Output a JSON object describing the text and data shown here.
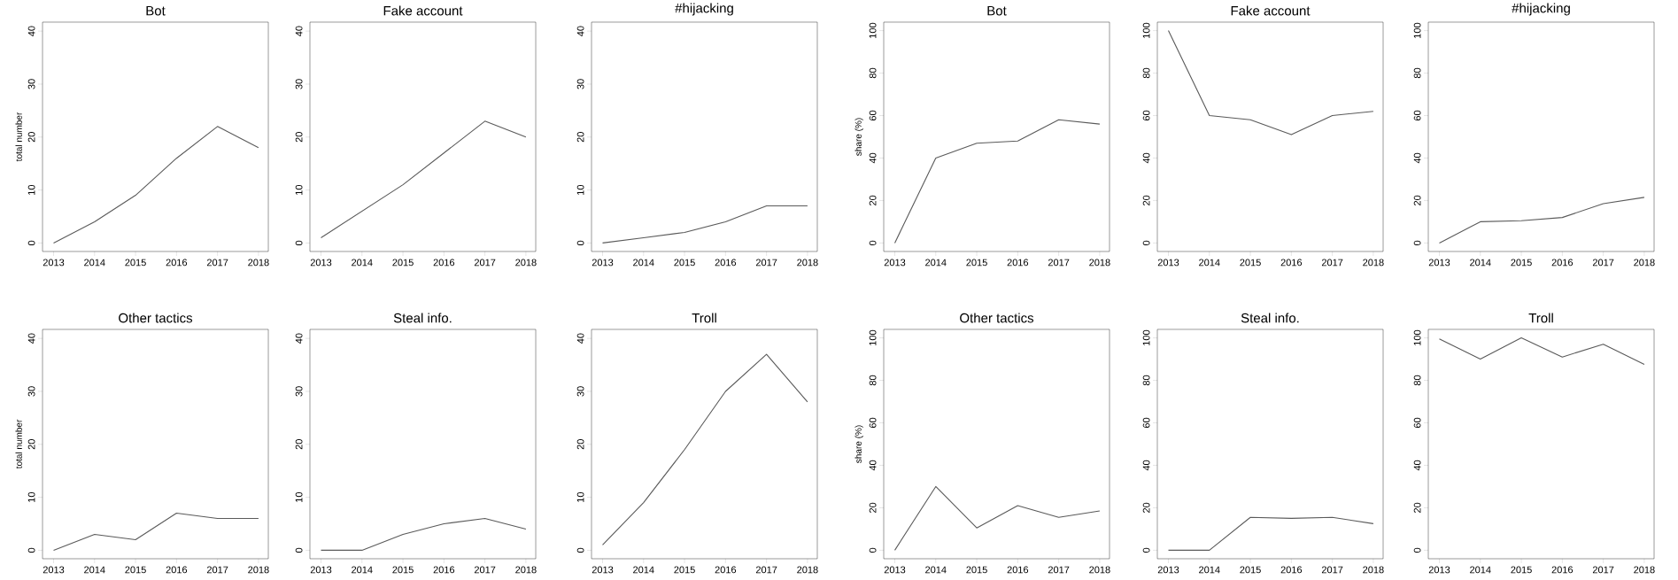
{
  "chart_data": [
    {
      "type": "line",
      "title": "Bot",
      "ylabel": "total number",
      "x": [
        2013,
        2014,
        2015,
        2016,
        2017,
        2018
      ],
      "values": [
        0,
        4,
        9,
        16,
        22,
        18
      ],
      "color": "#5a5a5a",
      "xlim": [
        2012.73,
        2018.24
      ],
      "ylim": [
        -1.6,
        41.7
      ],
      "xticks": [
        2013,
        2014,
        2015,
        2016,
        2017,
        2018
      ],
      "yticks": [
        0,
        10,
        20,
        30,
        40
      ]
    },
    {
      "type": "line",
      "title": "Fake account",
      "x": [
        2013,
        2014,
        2015,
        2016,
        2017,
        2018
      ],
      "values": [
        1,
        6,
        11,
        17,
        23,
        20
      ],
      "color": "#5a5a5a",
      "xlim": [
        2012.73,
        2018.24
      ],
      "ylim": [
        -1.6,
        41.7
      ],
      "xticks": [
        2013,
        2014,
        2015,
        2016,
        2017,
        2018
      ],
      "yticks": [
        0,
        10,
        20,
        30,
        40
      ]
    },
    {
      "type": "line",
      "title": "#hijacking",
      "x": [
        2013,
        2014,
        2015,
        2016,
        2017,
        2018
      ],
      "values": [
        0,
        1,
        2,
        4,
        7,
        7
      ],
      "color": "#5a5a5a",
      "xlim": [
        2012.73,
        2018.24
      ],
      "ylim": [
        -1.6,
        41.7
      ],
      "xticks": [
        2013,
        2014,
        2015,
        2016,
        2017,
        2018
      ],
      "yticks": [
        0,
        10,
        20,
        30,
        40
      ]
    },
    {
      "type": "line",
      "title": "Bot",
      "ylabel": "share (%)",
      "x": [
        2013,
        2014,
        2015,
        2016,
        2017,
        2018
      ],
      "values": [
        0,
        40,
        47,
        48,
        58,
        56
      ],
      "color": "#5a5a5a",
      "xlim": [
        2012.73,
        2018.24
      ],
      "ylim": [
        -4,
        104
      ],
      "xticks": [
        2013,
        2014,
        2015,
        2016,
        2017,
        2018
      ],
      "yticks": [
        0,
        20,
        40,
        60,
        80,
        100
      ]
    },
    {
      "type": "line",
      "title": "Fake account",
      "x": [
        2013,
        2014,
        2015,
        2016,
        2017,
        2018
      ],
      "values": [
        100,
        60,
        58,
        51,
        60,
        62
      ],
      "color": "#5a5a5a",
      "xlim": [
        2012.73,
        2018.24
      ],
      "ylim": [
        -4,
        104
      ],
      "xticks": [
        2013,
        2014,
        2015,
        2016,
        2017,
        2018
      ],
      "yticks": [
        0,
        20,
        40,
        60,
        80,
        100
      ]
    },
    {
      "type": "line",
      "title": "#hijacking",
      "x": [
        2013,
        2014,
        2015,
        2016,
        2017,
        2018
      ],
      "values": [
        0,
        10,
        10.5,
        12,
        18.5,
        21.5
      ],
      "color": "#5a5a5a",
      "xlim": [
        2012.73,
        2018.24
      ],
      "ylim": [
        -4,
        104
      ],
      "xticks": [
        2013,
        2014,
        2015,
        2016,
        2017,
        2018
      ],
      "yticks": [
        0,
        20,
        40,
        60,
        80,
        100
      ]
    },
    {
      "type": "line",
      "title": "Other tactics",
      "ylabel": "total number",
      "x": [
        2013,
        2014,
        2015,
        2016,
        2017,
        2018
      ],
      "values": [
        0,
        3,
        2,
        7,
        6,
        6
      ],
      "color": "#5a5a5a",
      "xlim": [
        2012.73,
        2018.24
      ],
      "ylim": [
        -1.6,
        41.7
      ],
      "xticks": [
        2013,
        2014,
        2015,
        2016,
        2017,
        2018
      ],
      "yticks": [
        0,
        10,
        20,
        30,
        40
      ]
    },
    {
      "type": "line",
      "title": "Steal info.",
      "x": [
        2013,
        2014,
        2015,
        2016,
        2017,
        2018
      ],
      "values": [
        0,
        0,
        3,
        5,
        6,
        4
      ],
      "color": "#5a5a5a",
      "xlim": [
        2012.73,
        2018.24
      ],
      "ylim": [
        -1.6,
        41.7
      ],
      "xticks": [
        2013,
        2014,
        2015,
        2016,
        2017,
        2018
      ],
      "yticks": [
        0,
        10,
        20,
        30,
        40
      ]
    },
    {
      "type": "line",
      "title": "Troll",
      "x": [
        2013,
        2014,
        2015,
        2016,
        2017,
        2018
      ],
      "values": [
        1,
        9,
        19,
        30,
        37,
        28
      ],
      "color": "#5a5a5a",
      "xlim": [
        2012.73,
        2018.24
      ],
      "ylim": [
        -1.6,
        41.7
      ],
      "xticks": [
        2013,
        2014,
        2015,
        2016,
        2017,
        2018
      ],
      "yticks": [
        0,
        10,
        20,
        30,
        40
      ]
    },
    {
      "type": "line",
      "title": "Other tactics",
      "ylabel": "share (%)",
      "x": [
        2013,
        2014,
        2015,
        2016,
        2017,
        2018
      ],
      "values": [
        0,
        30,
        10.5,
        21,
        15.5,
        18.5
      ],
      "color": "#5a5a5a",
      "xlim": [
        2012.73,
        2018.24
      ],
      "ylim": [
        -4,
        104
      ],
      "xticks": [
        2013,
        2014,
        2015,
        2016,
        2017,
        2018
      ],
      "yticks": [
        0,
        20,
        40,
        60,
        80,
        100
      ]
    },
    {
      "type": "line",
      "title": "Steal info.",
      "x": [
        2013,
        2014,
        2015,
        2016,
        2017,
        2018
      ],
      "values": [
        0,
        0,
        15.5,
        15,
        15.5,
        12.5
      ],
      "color": "#5a5a5a",
      "xlim": [
        2012.73,
        2018.24
      ],
      "ylim": [
        -4,
        104
      ],
      "xticks": [
        2013,
        2014,
        2015,
        2016,
        2017,
        2018
      ],
      "yticks": [
        0,
        20,
        40,
        60,
        80,
        100
      ]
    },
    {
      "type": "line",
      "title": "Troll",
      "x": [
        2013,
        2014,
        2015,
        2016,
        2017,
        2018
      ],
      "values": [
        99.5,
        90,
        100,
        91,
        97,
        87.5
      ],
      "color": "#5a5a5a",
      "xlim": [
        2012.73,
        2018.24
      ],
      "ylim": [
        -4,
        104
      ],
      "xticks": [
        2013,
        2014,
        2015,
        2016,
        2017,
        2018
      ],
      "yticks": [
        0,
        20,
        40,
        60,
        80,
        100
      ]
    }
  ]
}
